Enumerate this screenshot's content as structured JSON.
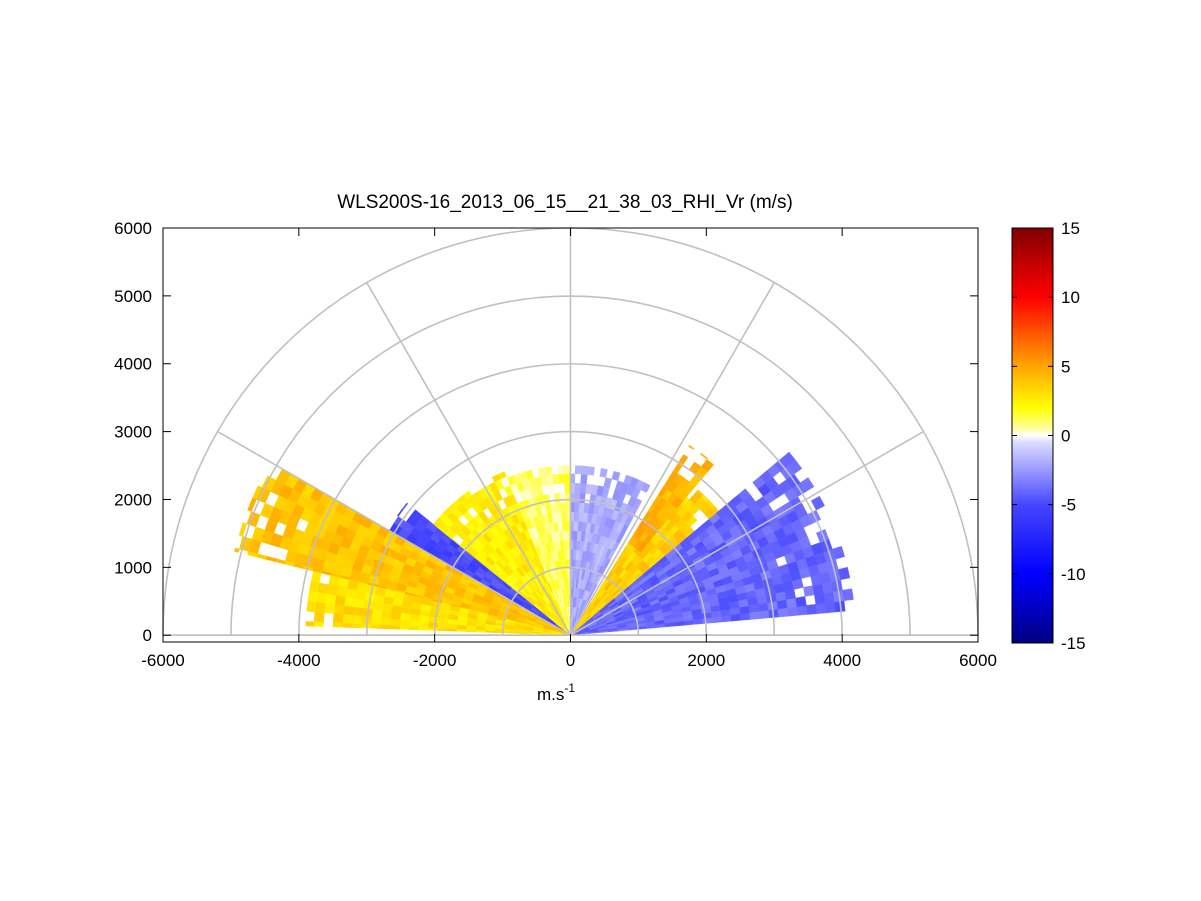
{
  "chart_data": {
    "type": "heatmap",
    "subtype": "polar-rhi-scan",
    "title": "WLS200S-16_2013_06_15__21_38_03_RHI_Vr (m/s)",
    "xlabel": "m.s",
    "xlabel_superscript": "-1",
    "ylabel": "",
    "xlim": [
      -6000,
      6000
    ],
    "ylim": [
      -100,
      6000
    ],
    "xticks": [
      -6000,
      -4000,
      -2000,
      0,
      2000,
      4000,
      6000
    ],
    "xtick_labels": [
      "-6000",
      "-4000",
      "-2000",
      "0",
      "2000",
      "4000",
      "6000"
    ],
    "yticks": [
      0,
      1000,
      2000,
      3000,
      4000,
      5000,
      6000
    ],
    "ytick_labels": [
      "0",
      "1000",
      "2000",
      "3000",
      "4000",
      "5000",
      "6000"
    ],
    "polar_grid": {
      "ring_radii_m": [
        1000,
        2000,
        3000,
        4000,
        5000,
        6000
      ],
      "spoke_angles_deg": [
        0,
        30,
        60,
        90,
        120,
        150,
        180
      ]
    },
    "sectors": [
      {
        "name": "left-far-orange",
        "angle_from_deg": 150,
        "angle_to_deg": 166,
        "range_from_m": 0,
        "range_to_m": 5100,
        "velocity_ms": 4
      },
      {
        "name": "left-orange-yellow",
        "angle_from_deg": 166,
        "angle_to_deg": 178,
        "range_from_m": 0,
        "range_to_m": 3900,
        "velocity_ms": 3
      },
      {
        "name": "left-blue",
        "angle_from_deg": 141,
        "angle_to_deg": 150,
        "range_from_m": 0,
        "range_to_m": 3100,
        "velocity_ms": -5
      },
      {
        "name": "left-inner-yellow",
        "angle_from_deg": 112,
        "angle_to_deg": 141,
        "range_from_m": 0,
        "range_to_m": 2600,
        "velocity_ms": 2.5
      },
      {
        "name": "center-pale",
        "angle_from_deg": 90,
        "angle_to_deg": 112,
        "range_from_m": 0,
        "range_to_m": 2500,
        "velocity_ms": 1
      },
      {
        "name": "center-light-blue",
        "angle_from_deg": 62,
        "angle_to_deg": 90,
        "range_from_m": 0,
        "range_to_m": 2500,
        "velocity_ms": -2
      },
      {
        "name": "right-yellow",
        "angle_from_deg": 40,
        "angle_to_deg": 58,
        "range_from_m": 0,
        "range_to_m": 2850,
        "velocity_ms": 3.5
      },
      {
        "name": "right-orange",
        "angle_from_deg": 50,
        "angle_to_deg": 58,
        "range_from_m": 1600,
        "range_to_m": 3300,
        "velocity_ms": 4.5
      },
      {
        "name": "right-blue",
        "angle_from_deg": 5,
        "angle_to_deg": 40,
        "range_from_m": 0,
        "range_to_m": 4200,
        "velocity_ms": -4
      }
    ],
    "colorbar": {
      "range": [
        -15,
        15
      ],
      "ticks": [
        15,
        10,
        5,
        0,
        -5,
        -10,
        -15
      ],
      "tick_labels": [
        "15",
        "10",
        "5",
        "0",
        "-5",
        "-10",
        "-15"
      ],
      "colormap_stops": [
        {
          "value": -15,
          "color": "#000080"
        },
        {
          "value": -10,
          "color": "#0000ff"
        },
        {
          "value": -5,
          "color": "#4646ff"
        },
        {
          "value": -0.5,
          "color": "#dcdcff"
        },
        {
          "value": 0,
          "color": "#ffffff"
        },
        {
          "value": 0.5,
          "color": "#ffffa0"
        },
        {
          "value": 2,
          "color": "#ffff00"
        },
        {
          "value": 5,
          "color": "#ffa500"
        },
        {
          "value": 10,
          "color": "#ff0000"
        },
        {
          "value": 15,
          "color": "#800000"
        }
      ]
    }
  }
}
